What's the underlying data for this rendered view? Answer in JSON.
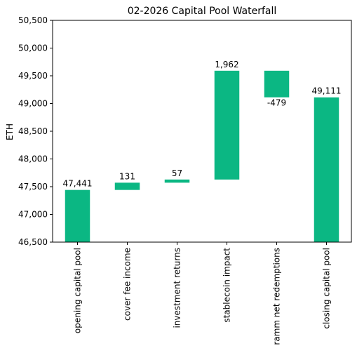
{
  "chart_data": {
    "type": "bar",
    "subtype": "waterfall",
    "title": "02-2026 Capital Pool Waterfall",
    "xlabel": "",
    "ylabel": "ETH",
    "ylim": [
      46500,
      50500
    ],
    "yticks": [
      46500,
      47000,
      47500,
      48000,
      48500,
      49000,
      49500,
      50000,
      50500
    ],
    "ytick_labels": [
      "46,500",
      "47,000",
      "47,500",
      "48,000",
      "48,500",
      "49,000",
      "49,500",
      "50,000",
      "50,500"
    ],
    "grid": false,
    "bar_color": "#0bb783",
    "categories": [
      "opening capital pool",
      "cover fee income",
      "investment returns",
      "stablecoin impact",
      "ramm net redemptions",
      "closing capital pool"
    ],
    "bars": [
      {
        "category": "opening capital pool",
        "bottom": 46500,
        "top": 47441,
        "label": "47,441",
        "label_position": "above"
      },
      {
        "category": "cover fee income",
        "bottom": 47441,
        "top": 47572,
        "label": "131",
        "label_position": "above"
      },
      {
        "category": "investment returns",
        "bottom": 47572,
        "top": 47629,
        "label": "57",
        "label_position": "above"
      },
      {
        "category": "stablecoin impact",
        "bottom": 47629,
        "top": 49591,
        "label": "1,962",
        "label_position": "above"
      },
      {
        "category": "ramm net redemptions",
        "bottom": 49112,
        "top": 49591,
        "label": "-479",
        "label_position": "below"
      },
      {
        "category": "closing capital pool",
        "bottom": 46500,
        "top": 49111,
        "label": "49,111",
        "label_position": "above"
      }
    ]
  }
}
